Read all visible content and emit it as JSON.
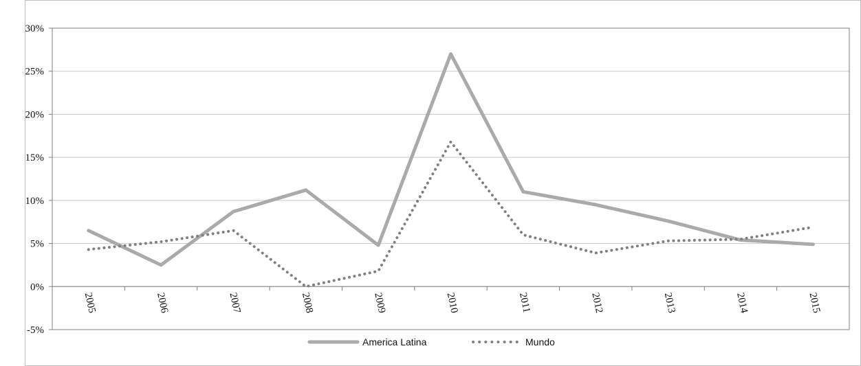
{
  "chart_data": {
    "type": "line",
    "x": [
      "2005",
      "2006",
      "2007",
      "2008",
      "2009",
      "2010",
      "2011",
      "2012",
      "2013",
      "2014",
      "2015"
    ],
    "series": [
      {
        "name": "America Latina",
        "values": [
          6.5,
          2.5,
          8.7,
          11.2,
          4.8,
          27.0,
          11.0,
          9.5,
          7.6,
          5.4,
          4.9
        ],
        "color": "#aaaaaa",
        "style": "solid"
      },
      {
        "name": "Mundo",
        "values": [
          4.3,
          5.2,
          6.5,
          0.0,
          1.8,
          16.8,
          6.0,
          3.9,
          5.3,
          5.5,
          6.9
        ],
        "color": "#808080",
        "style": "dotted"
      }
    ],
    "ylim": [
      -5,
      30
    ],
    "yticks": [
      "-5%",
      "0%",
      "5%",
      "10%",
      "15%",
      "20%",
      "25%",
      "30%"
    ],
    "grid": true,
    "legend": "bottom"
  }
}
